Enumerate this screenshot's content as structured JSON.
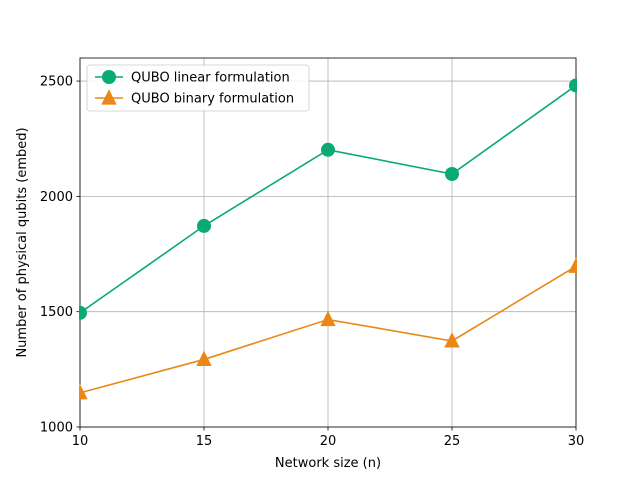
{
  "chart_data": {
    "type": "line",
    "title": "",
    "xlabel": "Network size (n)",
    "ylabel": "Number of physical qubits (embed)",
    "x": [
      10,
      15,
      20,
      25,
      30
    ],
    "xlim": [
      10,
      30
    ],
    "ylim": [
      1000,
      2600
    ],
    "xticks": [
      10,
      15,
      20,
      25,
      30
    ],
    "yticks": [
      1000,
      1500,
      2000,
      2500
    ],
    "grid": true,
    "legend_position": "top-left",
    "series": [
      {
        "name": "QUBO linear formulation",
        "values": [
          1495,
          1872,
          2202,
          2097,
          2481
        ],
        "color": "#0aab72",
        "marker": "circle"
      },
      {
        "name": "QUBO binary formulation",
        "values": [
          1148,
          1293,
          1466,
          1373,
          1697
        ],
        "color": "#e98816",
        "marker": "triangle"
      }
    ]
  }
}
